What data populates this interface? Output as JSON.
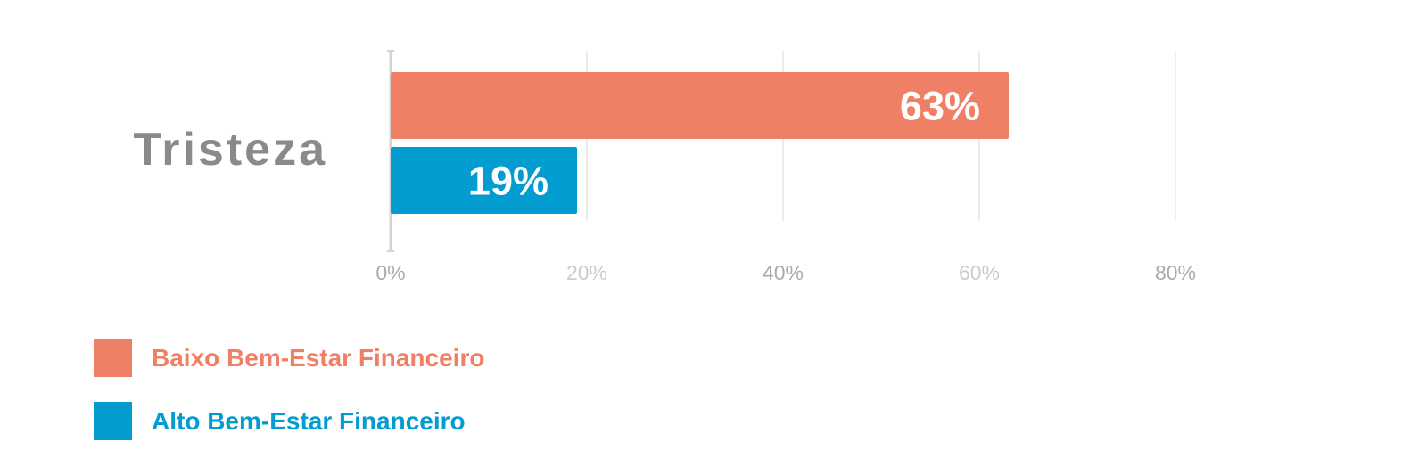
{
  "chart_data": {
    "type": "bar",
    "orientation": "horizontal",
    "categories": [
      "Tristeza"
    ],
    "series": [
      {
        "name": "Baixo Bem-Estar Financeiro",
        "values": [
          63
        ],
        "label": "63%",
        "color": "#ef7f65"
      },
      {
        "name": "Alto Bem-Estar Financeiro",
        "values": [
          19
        ],
        "label": "19%",
        "color": "#039cd0"
      }
    ],
    "x_ticks": [
      0,
      20,
      40,
      60,
      80
    ],
    "x_tick_labels": [
      "0%",
      "20%",
      "40%",
      "60%",
      "80%"
    ],
    "xlim": [
      0,
      80
    ],
    "grid": true,
    "legend_placement": "bottom-left"
  }
}
